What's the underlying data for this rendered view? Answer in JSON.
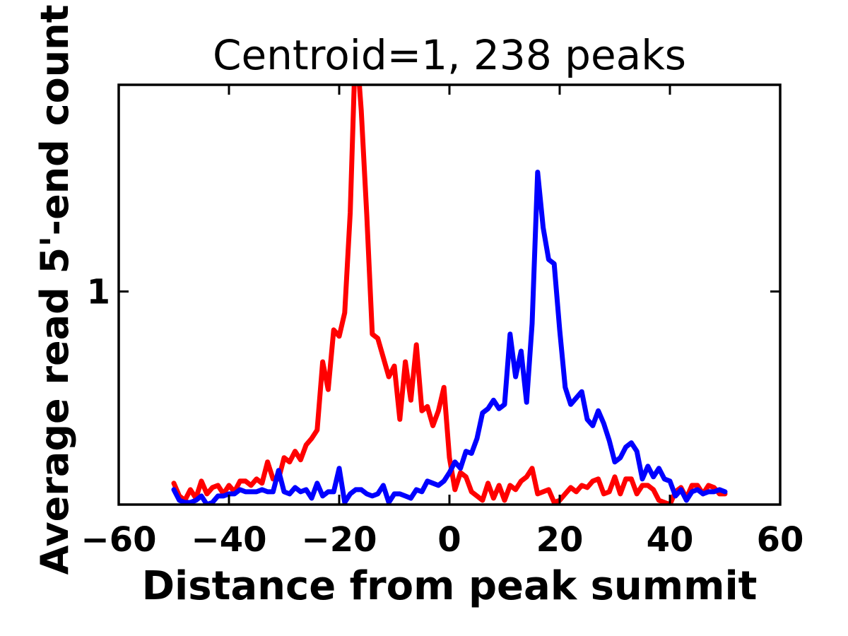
{
  "figure": {
    "title": "Centroid=1, 238 peaks",
    "xlabel": "Distance from peak summit",
    "ylabel": "Average read 5'-end count"
  },
  "chart_data": {
    "type": "line",
    "title": "Centroid=1, 238 peaks",
    "xlabel": "Distance from peak summit",
    "ylabel": "Average read 5'-end count",
    "xlim": [
      -60,
      60
    ],
    "ylim": [
      0,
      1.97
    ],
    "grid": false,
    "legend": null,
    "xticks": {
      "values": [
        -60,
        -40,
        -20,
        0,
        20,
        40,
        60
      ],
      "labels": [
        "−60",
        "−40",
        "−20",
        "0",
        "20",
        "40",
        "60"
      ]
    },
    "yticks": {
      "values": [
        1
      ],
      "labels": [
        "1"
      ]
    },
    "colors": {
      "red_series": "#ff0000",
      "blue_series": "#0000ff",
      "axis": "#000000"
    },
    "x": [
      -50,
      -49,
      -48,
      -47,
      -46,
      -45,
      -44,
      -43,
      -42,
      -41,
      -40,
      -39,
      -38,
      -37,
      -36,
      -35,
      -34,
      -33,
      -32,
      -31,
      -30,
      -29,
      -28,
      -27,
      -26,
      -25,
      -24,
      -23,
      -22,
      -21,
      -20,
      -19,
      -18,
      -17,
      -16,
      -15,
      -14,
      -13,
      -12,
      -11,
      -10,
      -9,
      -8,
      -7,
      -6,
      -5,
      -4,
      -3,
      -2,
      -1,
      0,
      1,
      2,
      3,
      4,
      5,
      6,
      7,
      8,
      9,
      10,
      11,
      12,
      13,
      14,
      15,
      16,
      17,
      18,
      19,
      20,
      21,
      22,
      23,
      24,
      25,
      26,
      27,
      28,
      29,
      30,
      31,
      32,
      33,
      34,
      35,
      36,
      37,
      38,
      39,
      40,
      41,
      42,
      43,
      44,
      45,
      46,
      47,
      48,
      49,
      50
    ],
    "series": [
      {
        "name": "red-series",
        "color": "#ff0000",
        "values": [
          0.1,
          0.04,
          0.02,
          0.07,
          0.03,
          0.11,
          0.05,
          0.08,
          0.09,
          0.05,
          0.09,
          0.06,
          0.11,
          0.11,
          0.09,
          0.12,
          0.1,
          0.2,
          0.12,
          0.12,
          0.22,
          0.2,
          0.25,
          0.21,
          0.28,
          0.31,
          0.35,
          0.67,
          0.54,
          0.82,
          0.79,
          0.9,
          1.37,
          2.2,
          1.85,
          1.36,
          0.8,
          0.78,
          0.69,
          0.6,
          0.65,
          0.4,
          0.67,
          0.49,
          0.75,
          0.44,
          0.46,
          0.37,
          0.44,
          0.55,
          0.22,
          0.07,
          0.15,
          0.13,
          0.06,
          0.04,
          0.02,
          0.1,
          0.03,
          0.09,
          0.02,
          0.09,
          0.07,
          0.11,
          0.13,
          0.17,
          0.05,
          0.06,
          0.07,
          0.01,
          0.02,
          0.05,
          0.08,
          0.06,
          0.09,
          0.08,
          0.11,
          0.12,
          0.05,
          0.06,
          0.13,
          0.05,
          0.12,
          0.12,
          0.05,
          0.09,
          0.09,
          0.07,
          0.02,
          0.01,
          0.0,
          0.06,
          0.08,
          0.03,
          0.09,
          0.09,
          0.05,
          0.09,
          0.08,
          0.05,
          0.05
        ]
      },
      {
        "name": "blue-series",
        "color": "#0000ff",
        "values": [
          0.07,
          0.02,
          0.01,
          0.01,
          0.02,
          0.04,
          0.0,
          0.01,
          0.04,
          0.04,
          0.05,
          0.05,
          0.07,
          0.06,
          0.06,
          0.06,
          0.07,
          0.06,
          0.06,
          0.16,
          0.06,
          0.05,
          0.08,
          0.06,
          0.07,
          0.03,
          0.1,
          0.04,
          0.06,
          0.06,
          0.17,
          0.01,
          0.05,
          0.07,
          0.07,
          0.05,
          0.04,
          0.05,
          0.09,
          0.01,
          0.05,
          0.05,
          0.04,
          0.03,
          0.07,
          0.06,
          0.11,
          0.1,
          0.09,
          0.11,
          0.15,
          0.2,
          0.17,
          0.25,
          0.24,
          0.31,
          0.43,
          0.45,
          0.49,
          0.45,
          0.47,
          0.8,
          0.6,
          0.72,
          0.48,
          0.85,
          1.56,
          1.3,
          1.15,
          1.13,
          0.82,
          0.55,
          0.47,
          0.5,
          0.53,
          0.4,
          0.37,
          0.44,
          0.38,
          0.3,
          0.2,
          0.22,
          0.27,
          0.29,
          0.25,
          0.12,
          0.18,
          0.13,
          0.17,
          0.12,
          0.11,
          0.04,
          0.07,
          0.02,
          0.06,
          0.07,
          0.05,
          0.06,
          0.06,
          0.07,
          0.06
        ]
      }
    ]
  }
}
